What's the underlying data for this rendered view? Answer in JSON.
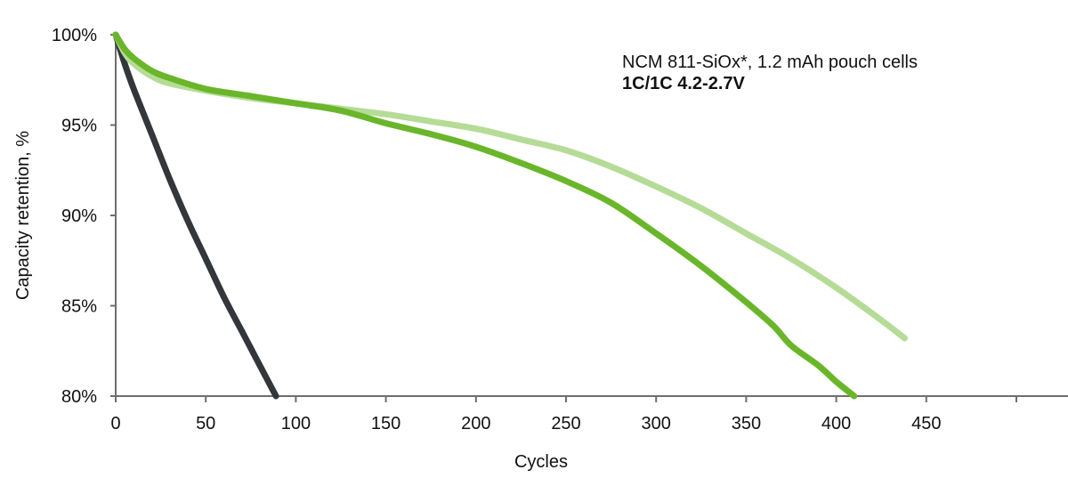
{
  "chart_data": {
    "type": "line",
    "title": "",
    "xlabel": "Cycles",
    "ylabel": "Capacity retention, %",
    "xlim": [
      0,
      500
    ],
    "ylim": [
      80,
      100
    ],
    "x_ticks": [
      0,
      50,
      100,
      150,
      200,
      250,
      300,
      350,
      400,
      450,
      500
    ],
    "x_tick_labels": [
      "0",
      "50",
      "100",
      "150",
      "200",
      "250",
      "300",
      "350",
      "400",
      "450",
      ""
    ],
    "y_ticks": [
      80,
      85,
      90,
      95,
      100
    ],
    "y_tick_labels": [
      "80%",
      "85%",
      "90%",
      "95%",
      "100%"
    ],
    "grid": false,
    "legend": null,
    "annotations": [
      {
        "text": "NCM 811-SiOx*, 1.2 mAh pouch cells",
        "bold": false
      },
      {
        "text": "1C/1C 4.2-2.7V",
        "bold": true
      }
    ],
    "series": [
      {
        "name": "dark-gray-series",
        "color": "#33363b",
        "x": [
          0,
          5,
          10,
          20,
          30,
          40,
          50,
          60,
          70,
          80,
          89
        ],
        "y": [
          100,
          98.4,
          97.0,
          94.5,
          92.0,
          89.7,
          87.6,
          85.5,
          83.6,
          81.7,
          80.0
        ]
      },
      {
        "name": "light-green-series",
        "color": "#b5dc96",
        "x": [
          0,
          5,
          10,
          20,
          30,
          50,
          75,
          100,
          125,
          150,
          175,
          200,
          225,
          250,
          275,
          300,
          325,
          350,
          375,
          400,
          425,
          438
        ],
        "y": [
          100,
          99.0,
          98.4,
          97.7,
          97.3,
          96.9,
          96.5,
          96.2,
          95.9,
          95.6,
          95.2,
          94.8,
          94.2,
          93.6,
          92.7,
          91.6,
          90.4,
          89.0,
          87.6,
          86.0,
          84.2,
          83.2
        ]
      },
      {
        "name": "green-series",
        "color": "#6ab62a",
        "x": [
          0,
          5,
          10,
          20,
          30,
          50,
          75,
          100,
          125,
          150,
          175,
          200,
          225,
          250,
          275,
          300,
          325,
          350,
          365,
          375,
          390,
          400,
          410
        ],
        "y": [
          100,
          99.2,
          98.7,
          98.0,
          97.6,
          97.0,
          96.6,
          96.2,
          95.8,
          95.1,
          94.5,
          93.8,
          92.9,
          91.9,
          90.7,
          89.0,
          87.2,
          85.2,
          83.9,
          82.8,
          81.7,
          80.8,
          80.0
        ]
      }
    ]
  }
}
